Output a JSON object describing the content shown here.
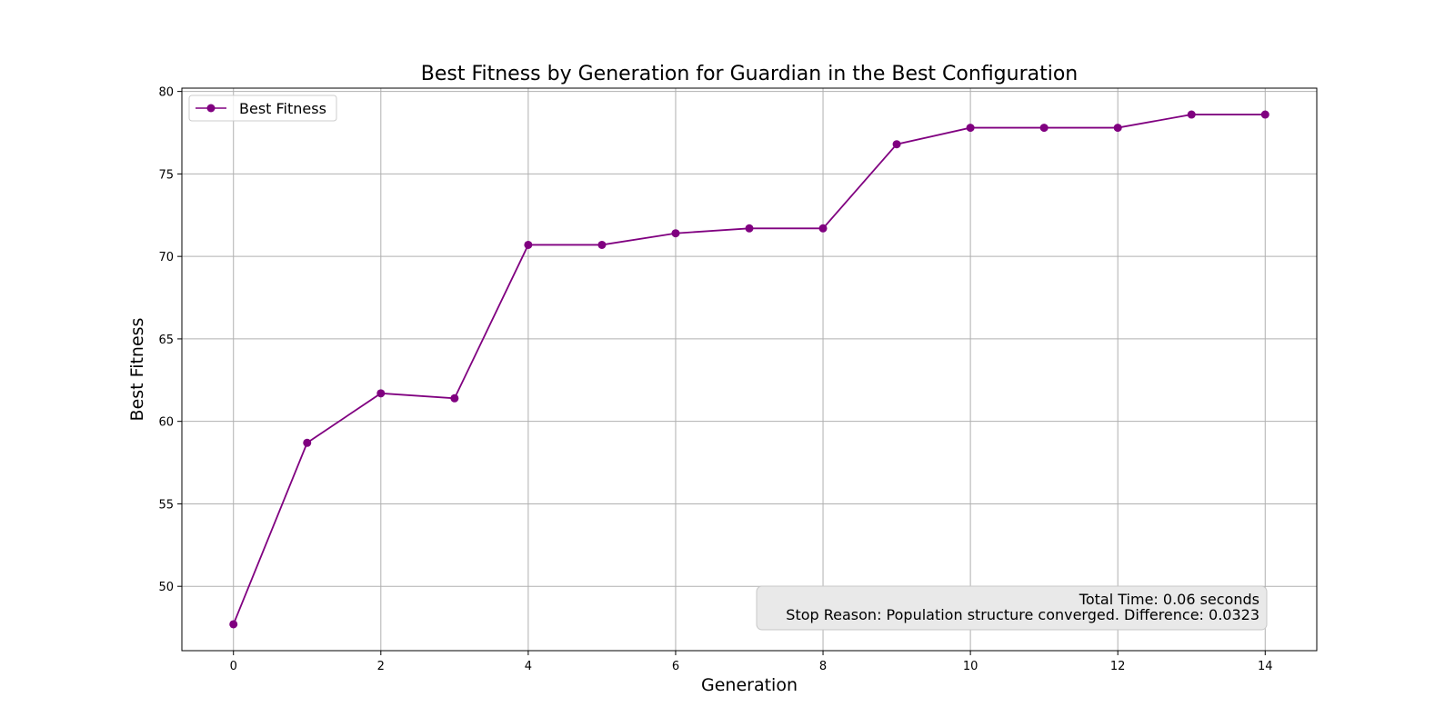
{
  "chart_data": {
    "type": "line",
    "title": "Best Fitness by Generation for Guardian in the Best Configuration",
    "xlabel": "Generation",
    "ylabel": "Best Fitness",
    "xlim": [
      -0.7,
      14.7
    ],
    "ylim": [
      46.1,
      80.2
    ],
    "xticks": [
      0,
      2,
      4,
      6,
      8,
      10,
      12,
      14
    ],
    "yticks": [
      50,
      55,
      60,
      65,
      70,
      75,
      80
    ],
    "grid": true,
    "legend_position": "upper-left",
    "series": [
      {
        "name": "Best Fitness",
        "color": "#800080",
        "marker": "circle",
        "x": [
          0,
          1,
          2,
          3,
          4,
          5,
          6,
          7,
          8,
          9,
          10,
          11,
          12,
          13,
          14
        ],
        "y": [
          47.7,
          58.7,
          61.7,
          61.4,
          70.7,
          70.7,
          71.4,
          71.7,
          71.7,
          76.8,
          77.8,
          77.8,
          77.8,
          78.6,
          78.6
        ]
      }
    ],
    "annotation": {
      "position": "lower-right",
      "lines": [
        "Total Time: 0.06 seconds",
        "Stop Reason: Population structure converged. Difference: 0.0323"
      ]
    }
  }
}
